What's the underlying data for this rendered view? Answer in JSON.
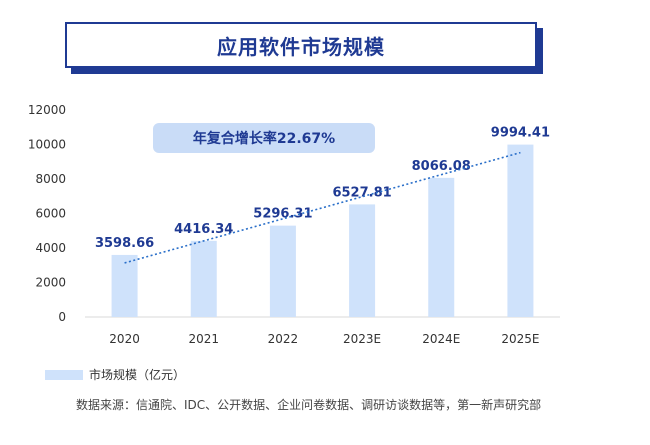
{
  "title": "应用软件市场规模",
  "cagr_label": "年复合增长率22.67%",
  "legend_label": "市场规模（亿元）",
  "source": "数据来源：信通院、IDC、公开数据、企业问卷数据、调研访谈数据等，第一新声研究部",
  "colors": {
    "bar": "#cfe2fb",
    "accent": "#1f3a93",
    "trend": "#2a6fc9",
    "cagr_bg": "#c9dcf7"
  },
  "chart_data": {
    "type": "bar",
    "categories": [
      "2020",
      "2021",
      "2022",
      "2023E",
      "2024E",
      "2025E"
    ],
    "values": [
      3598.66,
      4416.34,
      5296.31,
      6527.81,
      8066.08,
      9994.41
    ],
    "data_labels": [
      "3598.66",
      "4416.34",
      "5296.31",
      "6527.81",
      "8066.08",
      "9994.41"
    ],
    "y_ticks": [
      "0",
      "2000",
      "4000",
      "6000",
      "8000",
      "10000",
      "12000"
    ],
    "ylim": [
      0,
      12000
    ],
    "trendline": "dotted-linear",
    "legend": "bottom-left",
    "grid": false
  }
}
